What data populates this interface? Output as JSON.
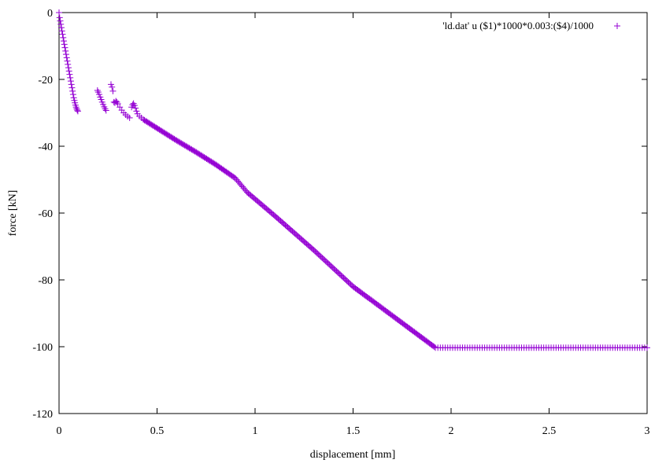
{
  "chart_data": {
    "type": "scatter",
    "xlabel": "displacement [mm]",
    "ylabel": "force [kN]",
    "xlim": [
      0,
      3
    ],
    "ylim": [
      -120,
      0
    ],
    "xticks": [
      "0",
      "0.5",
      "1",
      "1.5",
      "2",
      "2.5",
      "3"
    ],
    "xtick_values": [
      0,
      0.5,
      1,
      1.5,
      2,
      2.5,
      3
    ],
    "yticks": [
      "0",
      "-20",
      "-40",
      "-60",
      "-80",
      "-100",
      "-120"
    ],
    "ytick_values": [
      0,
      -20,
      -40,
      -60,
      -80,
      -100,
      -120
    ],
    "grid": false,
    "legend_position": "top-right",
    "marker": "plus",
    "series": [
      {
        "name": "'ld.dat' u ($1)*1000*0.003:($4)/1000",
        "color": "#9400d3",
        "points": [
          [
            0.0,
            0.0
          ],
          [
            0.003,
            -1.5
          ],
          [
            0.006,
            -2.5
          ],
          [
            0.009,
            -3.5
          ],
          [
            0.012,
            -4.5
          ],
          [
            0.015,
            -5.5
          ],
          [
            0.018,
            -6.5
          ],
          [
            0.021,
            -7.5
          ],
          [
            0.024,
            -8.5
          ],
          [
            0.027,
            -9.5
          ],
          [
            0.03,
            -10.5
          ],
          [
            0.033,
            -11.5
          ],
          [
            0.036,
            -12.5
          ],
          [
            0.039,
            -13.5
          ],
          [
            0.042,
            -14.5
          ],
          [
            0.045,
            -15.5
          ],
          [
            0.048,
            -16.5
          ],
          [
            0.051,
            -17.5
          ],
          [
            0.054,
            -18.5
          ],
          [
            0.057,
            -19.5
          ],
          [
            0.06,
            -20.5
          ],
          [
            0.063,
            -21.5
          ],
          [
            0.066,
            -22.5
          ],
          [
            0.069,
            -23.5
          ],
          [
            0.072,
            -24.5
          ],
          [
            0.075,
            -25.5
          ],
          [
            0.078,
            -26.3
          ],
          [
            0.081,
            -27.0
          ],
          [
            0.084,
            -27.7
          ],
          [
            0.087,
            -28.3
          ],
          [
            0.09,
            -28.8
          ],
          [
            0.093,
            -29.2
          ],
          [
            0.096,
            -29.5
          ],
          [
            0.196,
            -23.3
          ],
          [
            0.2,
            -23.8
          ],
          [
            0.205,
            -24.5
          ],
          [
            0.21,
            -25.3
          ],
          [
            0.215,
            -26.0
          ],
          [
            0.22,
            -26.8
          ],
          [
            0.225,
            -27.5
          ],
          [
            0.23,
            -28.2
          ],
          [
            0.235,
            -28.8
          ],
          [
            0.24,
            -29.3
          ],
          [
            0.265,
            -21.5
          ],
          [
            0.27,
            -22.3
          ],
          [
            0.275,
            -23.5
          ],
          [
            0.28,
            -26.8
          ],
          [
            0.285,
            -27.0
          ],
          [
            0.29,
            -26.5
          ],
          [
            0.295,
            -26.8
          ],
          [
            0.3,
            -27.3
          ],
          [
            0.31,
            -28.3
          ],
          [
            0.32,
            -29.2
          ],
          [
            0.33,
            -30.0
          ],
          [
            0.34,
            -30.6
          ],
          [
            0.35,
            -31.1
          ],
          [
            0.36,
            -31.5
          ],
          [
            0.37,
            -28.3
          ],
          [
            0.375,
            -27.6
          ],
          [
            0.38,
            -27.2
          ],
          [
            0.385,
            -27.8
          ],
          [
            0.39,
            -28.6
          ],
          [
            0.395,
            -29.5
          ],
          [
            0.4,
            -30.3
          ],
          [
            0.41,
            -31.0
          ],
          [
            0.42,
            -31.5
          ],
          [
            0.43,
            -32.0
          ]
        ],
        "segments": [
          {
            "x0": 0.43,
            "y0": -32.0,
            "x1": 0.5,
            "y1": -34.6,
            "step": 0.006
          },
          {
            "x0": 0.5,
            "y0": -34.6,
            "x1": 0.6,
            "y1": -38.3,
            "step": 0.006
          },
          {
            "x0": 0.6,
            "y0": -38.3,
            "x1": 0.7,
            "y1": -41.8,
            "step": 0.006
          },
          {
            "x0": 0.7,
            "y0": -41.8,
            "x1": 0.8,
            "y1": -45.5,
            "step": 0.006
          },
          {
            "x0": 0.8,
            "y0": -45.5,
            "x1": 0.9,
            "y1": -49.6,
            "step": 0.006
          },
          {
            "x0": 0.9,
            "y0": -49.6,
            "x1": 0.96,
            "y1": -53.8,
            "step": 0.006
          },
          {
            "x0": 0.96,
            "y0": -53.8,
            "x1": 1.1,
            "y1": -60.8,
            "step": 0.006
          },
          {
            "x0": 1.1,
            "y0": -60.8,
            "x1": 1.3,
            "y1": -71.1,
            "step": 0.006
          },
          {
            "x0": 1.3,
            "y0": -71.1,
            "x1": 1.5,
            "y1": -82.0,
            "step": 0.006
          },
          {
            "x0": 1.5,
            "y0": -82.0,
            "x1": 1.7,
            "y1": -90.7,
            "step": 0.006
          },
          {
            "x0": 1.7,
            "y0": -90.7,
            "x1": 1.92,
            "y1": -100.3,
            "step": 0.006
          },
          {
            "x0": 1.92,
            "y0": -100.3,
            "x1": 3.0,
            "y1": -100.3,
            "step": 0.0125
          }
        ]
      }
    ]
  }
}
